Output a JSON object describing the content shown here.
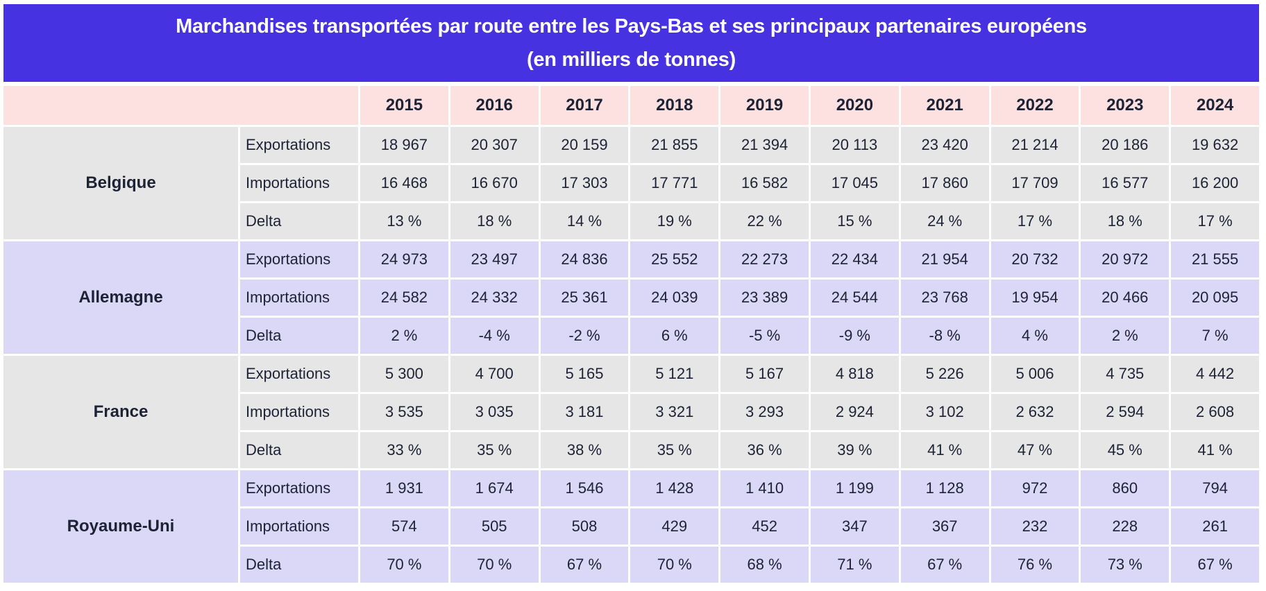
{
  "title": {
    "line1": "Marchandises transportées par route entre les Pays-Bas et ses principaux partenaires européens",
    "line2": "(en milliers de tonnes)"
  },
  "colors": {
    "title_bg": "#4632e0",
    "header_bg": "#fde1e1",
    "group_gray": "#e6e6e6",
    "group_lavender": "#dbd7f6",
    "text": "#1e2235"
  },
  "years": [
    "2015",
    "2016",
    "2017",
    "2018",
    "2019",
    "2020",
    "2021",
    "2022",
    "2023",
    "2024"
  ],
  "groups": [
    {
      "country": "Belgique",
      "rows": [
        {
          "label": "Exportations",
          "values": [
            "18 967",
            "20 307",
            "20 159",
            "21 855",
            "21 394",
            "20 113",
            "23 420",
            "21 214",
            "20 186",
            "19 632"
          ]
        },
        {
          "label": "Importations",
          "values": [
            "16 468",
            "16 670",
            "17 303",
            "17 771",
            "16 582",
            "17 045",
            "17 860",
            "17 709",
            "16 577",
            "16 200"
          ]
        },
        {
          "label": "Delta",
          "values": [
            "13 %",
            "18 %",
            "14 %",
            "19 %",
            "22 %",
            "15 %",
            "24 %",
            "17 %",
            "18 %",
            "17 %"
          ]
        }
      ]
    },
    {
      "country": "Allemagne",
      "rows": [
        {
          "label": "Exportations",
          "values": [
            "24 973",
            "23 497",
            "24 836",
            "25 552",
            "22 273",
            "22 434",
            "21 954",
            "20 732",
            "20 972",
            "21 555"
          ]
        },
        {
          "label": "Importations",
          "values": [
            "24 582",
            "24 332",
            "25 361",
            "24 039",
            "23 389",
            "24 544",
            "23 768",
            "19 954",
            "20 466",
            "20 095"
          ]
        },
        {
          "label": "Delta",
          "values": [
            "2 %",
            "-4 %",
            "-2 %",
            "6 %",
            "-5 %",
            "-9 %",
            "-8 %",
            "4 %",
            "2 %",
            "7 %"
          ]
        }
      ]
    },
    {
      "country": "France",
      "rows": [
        {
          "label": "Exportations",
          "values": [
            "5 300",
            "4 700",
            "5 165",
            "5 121",
            "5 167",
            "4 818",
            "5 226",
            "5 006",
            "4 735",
            "4 442"
          ]
        },
        {
          "label": "Importations",
          "values": [
            "3 535",
            "3 035",
            "3 181",
            "3 321",
            "3 293",
            "2 924",
            "3 102",
            "2 632",
            "2 594",
            "2 608"
          ]
        },
        {
          "label": "Delta",
          "values": [
            "33 %",
            "35 %",
            "38 %",
            "35 %",
            "36 %",
            "39 %",
            "41 %",
            "47 %",
            "45 %",
            "41 %"
          ]
        }
      ]
    },
    {
      "country": "Royaume-Uni",
      "rows": [
        {
          "label": "Exportations",
          "values": [
            "1 931",
            "1 674",
            "1 546",
            "1 428",
            "1 410",
            "1 199",
            "1 128",
            "972",
            "860",
            "794"
          ]
        },
        {
          "label": "Importations",
          "values": [
            "574",
            "505",
            "508",
            "429",
            "452",
            "347",
            "367",
            "232",
            "228",
            "261"
          ]
        },
        {
          "label": "Delta",
          "values": [
            "70 %",
            "70 %",
            "67 %",
            "70 %",
            "68 %",
            "71 %",
            "67 %",
            "76 %",
            "73 %",
            "67 %"
          ]
        }
      ]
    }
  ]
}
